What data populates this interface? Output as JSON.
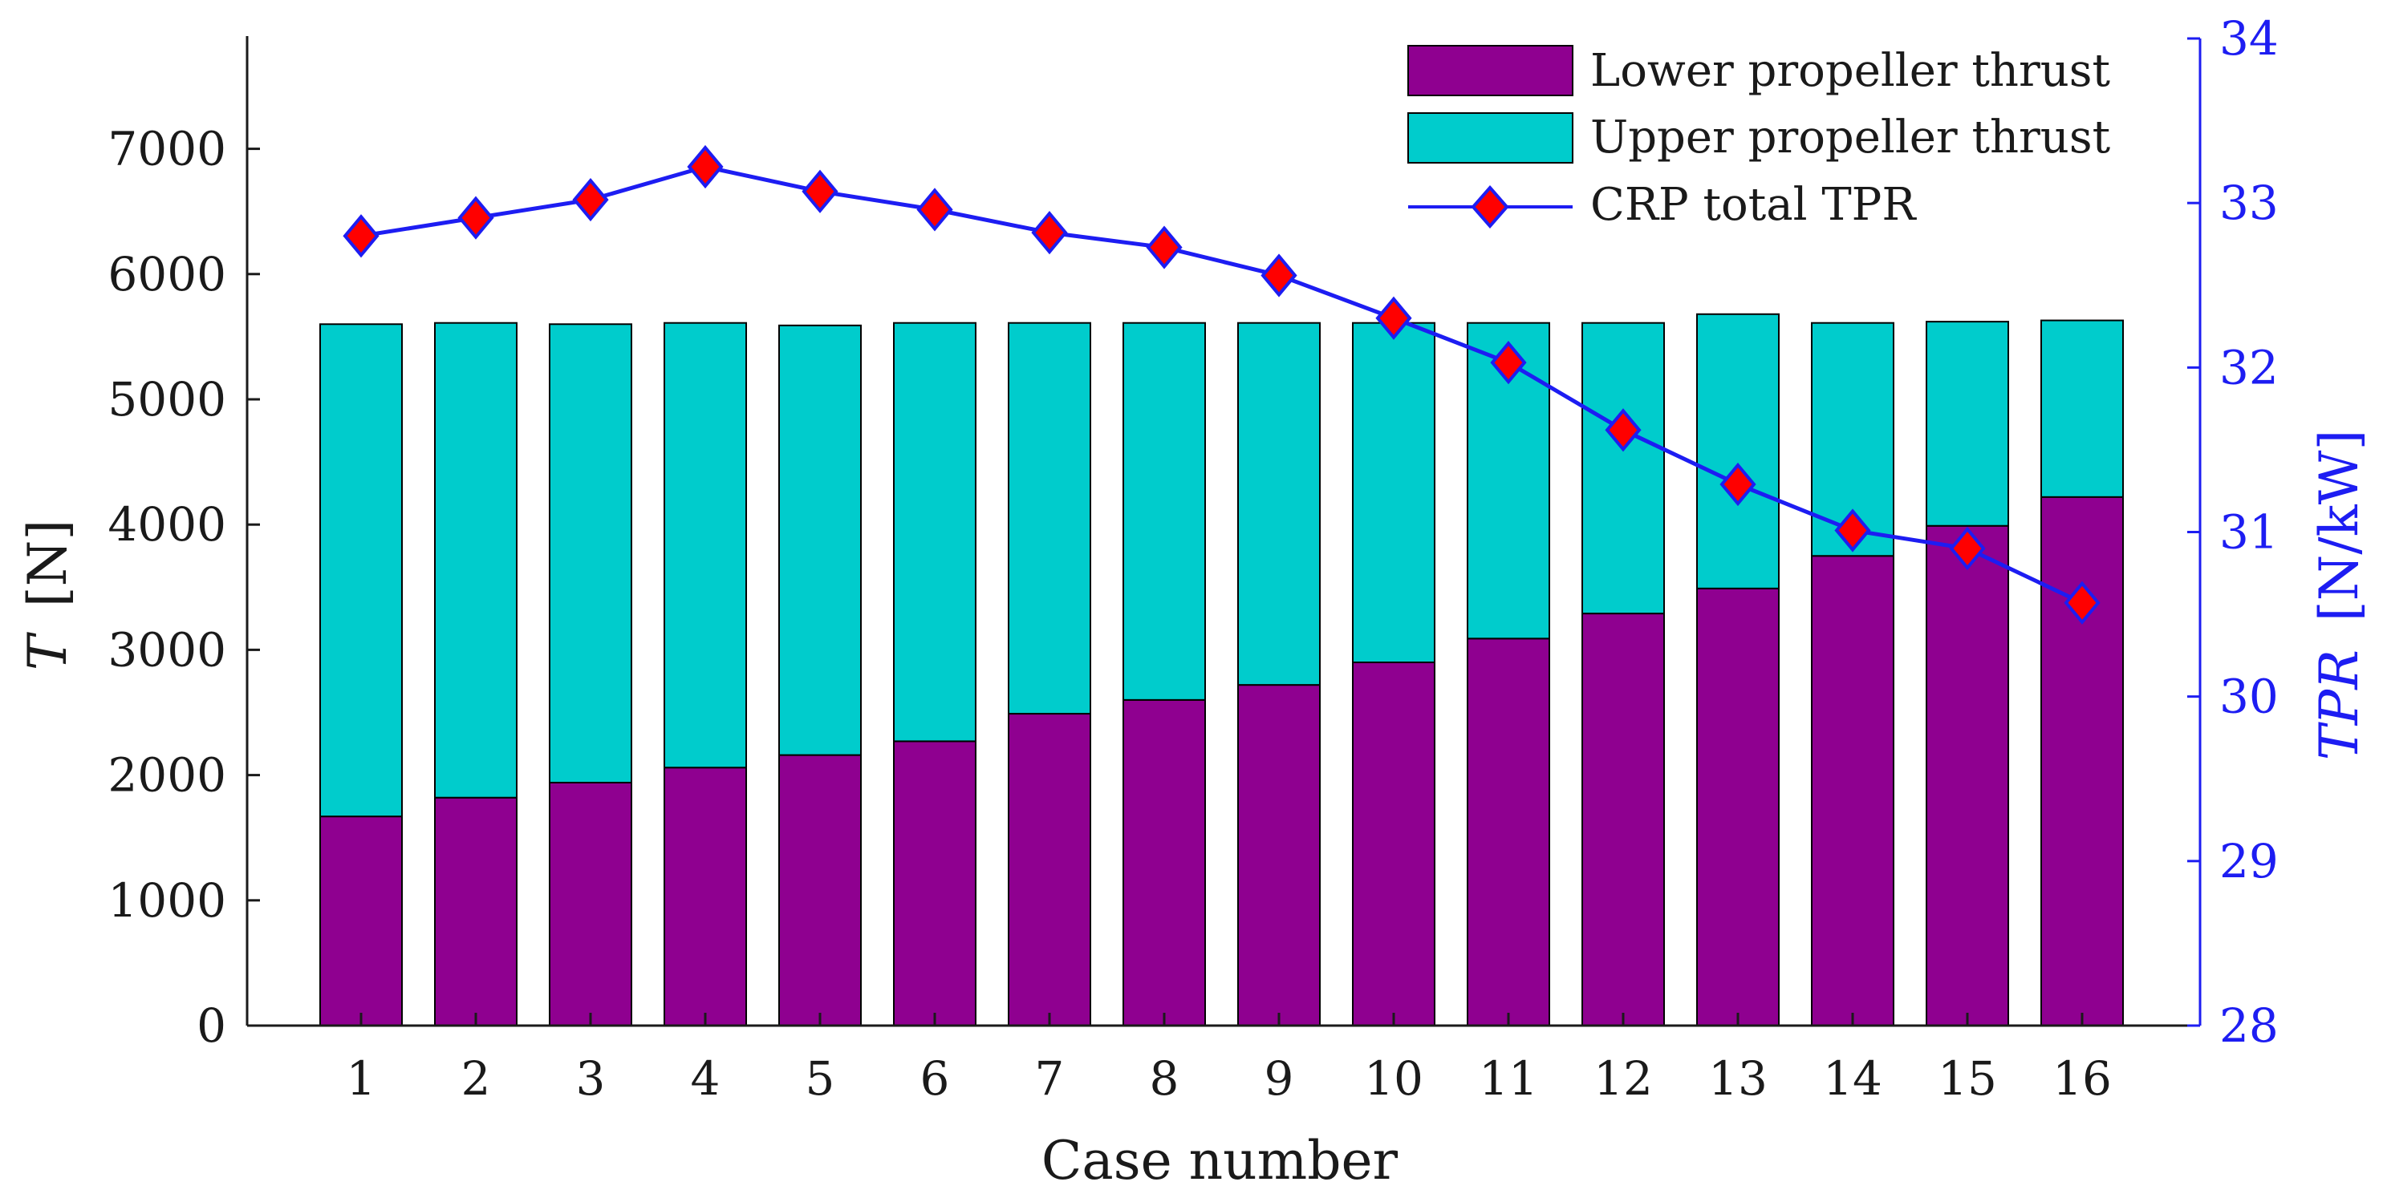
{
  "chart_data": {
    "type": "bar",
    "stacked": true,
    "xlabel": "Case number",
    "ylabel": {
      "symbol": "T",
      "unit": "[N]"
    },
    "y2label": {
      "symbol": "TPR",
      "unit": "[N/kW]"
    },
    "categories": [
      "1",
      "2",
      "3",
      "4",
      "5",
      "6",
      "7",
      "8",
      "9",
      "10",
      "11",
      "12",
      "13",
      "14",
      "15",
      "16"
    ],
    "ylim": [
      0,
      7900
    ],
    "yticks": [
      0,
      1000,
      2000,
      3000,
      4000,
      5000,
      6000,
      7000
    ],
    "y2lim": [
      28,
      34
    ],
    "y2ticks": [
      28,
      29,
      30,
      31,
      32,
      33,
      34
    ],
    "legend_position": "top-right",
    "series": [
      {
        "name": "Lower propeller thrust",
        "kind": "bar",
        "color": "#8f0090",
        "values": [
          1670,
          1820,
          1940,
          2060,
          2160,
          2270,
          2490,
          2600,
          2720,
          2900,
          3090,
          3290,
          3490,
          3750,
          3990,
          4220
        ]
      },
      {
        "name": "Upper propeller thrust",
        "kind": "bar",
        "color": "#00cccc",
        "values": [
          3930,
          3790,
          3660,
          3550,
          3430,
          3340,
          3120,
          3010,
          2890,
          2710,
          2520,
          2320,
          2190,
          1860,
          1630,
          1410
        ]
      },
      {
        "name": "CRP total TPR",
        "kind": "line",
        "axis": "right",
        "line_color": "#1d1df2",
        "marker_color": "#ff0000",
        "values": [
          32.8,
          32.91,
          33.02,
          33.22,
          33.07,
          32.96,
          32.82,
          32.73,
          32.56,
          32.3,
          32.03,
          31.62,
          31.29,
          31.01,
          30.9,
          30.57
        ]
      }
    ]
  }
}
